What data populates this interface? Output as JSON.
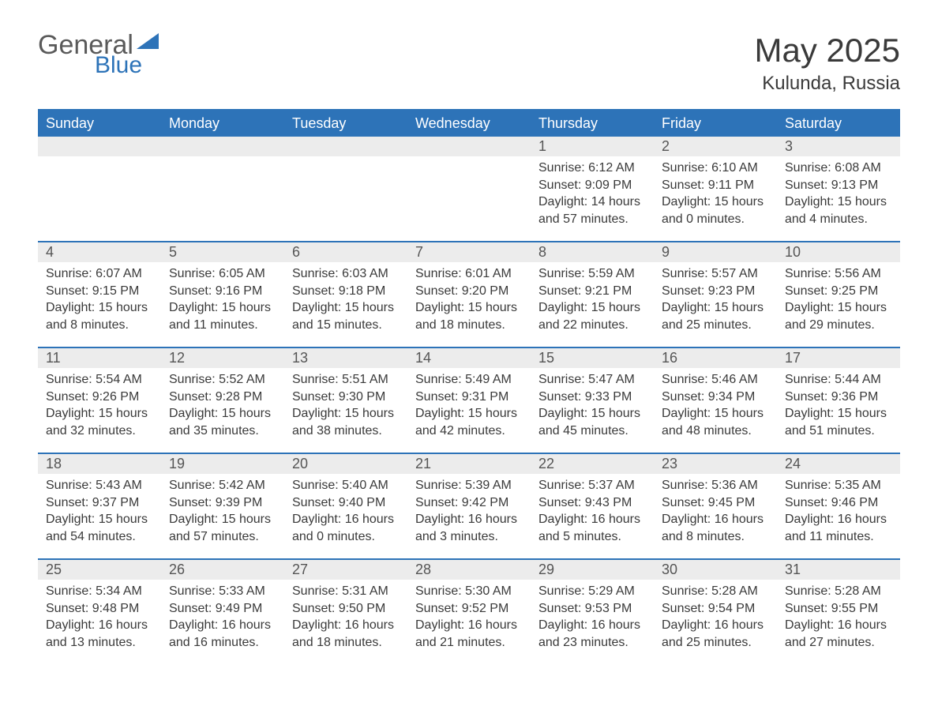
{
  "logo": {
    "word1": "General",
    "word2": "Blue"
  },
  "title": "May 2025",
  "location": "Kulunda, Russia",
  "colors": {
    "brand_blue": "#2d73b8",
    "header_bg": "#2d73b8",
    "header_text": "#ffffff",
    "daynum_bg": "#ececec",
    "text": "#3a3a3a",
    "page_bg": "#ffffff"
  },
  "weekdays": [
    "Sunday",
    "Monday",
    "Tuesday",
    "Wednesday",
    "Thursday",
    "Friday",
    "Saturday"
  ],
  "weeks": [
    [
      null,
      null,
      null,
      null,
      {
        "n": "1",
        "sr": "Sunrise: 6:12 AM",
        "ss": "Sunset: 9:09 PM",
        "d1": "Daylight: 14 hours",
        "d2": "and 57 minutes."
      },
      {
        "n": "2",
        "sr": "Sunrise: 6:10 AM",
        "ss": "Sunset: 9:11 PM",
        "d1": "Daylight: 15 hours",
        "d2": "and 0 minutes."
      },
      {
        "n": "3",
        "sr": "Sunrise: 6:08 AM",
        "ss": "Sunset: 9:13 PM",
        "d1": "Daylight: 15 hours",
        "d2": "and 4 minutes."
      }
    ],
    [
      {
        "n": "4",
        "sr": "Sunrise: 6:07 AM",
        "ss": "Sunset: 9:15 PM",
        "d1": "Daylight: 15 hours",
        "d2": "and 8 minutes."
      },
      {
        "n": "5",
        "sr": "Sunrise: 6:05 AM",
        "ss": "Sunset: 9:16 PM",
        "d1": "Daylight: 15 hours",
        "d2": "and 11 minutes."
      },
      {
        "n": "6",
        "sr": "Sunrise: 6:03 AM",
        "ss": "Sunset: 9:18 PM",
        "d1": "Daylight: 15 hours",
        "d2": "and 15 minutes."
      },
      {
        "n": "7",
        "sr": "Sunrise: 6:01 AM",
        "ss": "Sunset: 9:20 PM",
        "d1": "Daylight: 15 hours",
        "d2": "and 18 minutes."
      },
      {
        "n": "8",
        "sr": "Sunrise: 5:59 AM",
        "ss": "Sunset: 9:21 PM",
        "d1": "Daylight: 15 hours",
        "d2": "and 22 minutes."
      },
      {
        "n": "9",
        "sr": "Sunrise: 5:57 AM",
        "ss": "Sunset: 9:23 PM",
        "d1": "Daylight: 15 hours",
        "d2": "and 25 minutes."
      },
      {
        "n": "10",
        "sr": "Sunrise: 5:56 AM",
        "ss": "Sunset: 9:25 PM",
        "d1": "Daylight: 15 hours",
        "d2": "and 29 minutes."
      }
    ],
    [
      {
        "n": "11",
        "sr": "Sunrise: 5:54 AM",
        "ss": "Sunset: 9:26 PM",
        "d1": "Daylight: 15 hours",
        "d2": "and 32 minutes."
      },
      {
        "n": "12",
        "sr": "Sunrise: 5:52 AM",
        "ss": "Sunset: 9:28 PM",
        "d1": "Daylight: 15 hours",
        "d2": "and 35 minutes."
      },
      {
        "n": "13",
        "sr": "Sunrise: 5:51 AM",
        "ss": "Sunset: 9:30 PM",
        "d1": "Daylight: 15 hours",
        "d2": "and 38 minutes."
      },
      {
        "n": "14",
        "sr": "Sunrise: 5:49 AM",
        "ss": "Sunset: 9:31 PM",
        "d1": "Daylight: 15 hours",
        "d2": "and 42 minutes."
      },
      {
        "n": "15",
        "sr": "Sunrise: 5:47 AM",
        "ss": "Sunset: 9:33 PM",
        "d1": "Daylight: 15 hours",
        "d2": "and 45 minutes."
      },
      {
        "n": "16",
        "sr": "Sunrise: 5:46 AM",
        "ss": "Sunset: 9:34 PM",
        "d1": "Daylight: 15 hours",
        "d2": "and 48 minutes."
      },
      {
        "n": "17",
        "sr": "Sunrise: 5:44 AM",
        "ss": "Sunset: 9:36 PM",
        "d1": "Daylight: 15 hours",
        "d2": "and 51 minutes."
      }
    ],
    [
      {
        "n": "18",
        "sr": "Sunrise: 5:43 AM",
        "ss": "Sunset: 9:37 PM",
        "d1": "Daylight: 15 hours",
        "d2": "and 54 minutes."
      },
      {
        "n": "19",
        "sr": "Sunrise: 5:42 AM",
        "ss": "Sunset: 9:39 PM",
        "d1": "Daylight: 15 hours",
        "d2": "and 57 minutes."
      },
      {
        "n": "20",
        "sr": "Sunrise: 5:40 AM",
        "ss": "Sunset: 9:40 PM",
        "d1": "Daylight: 16 hours",
        "d2": "and 0 minutes."
      },
      {
        "n": "21",
        "sr": "Sunrise: 5:39 AM",
        "ss": "Sunset: 9:42 PM",
        "d1": "Daylight: 16 hours",
        "d2": "and 3 minutes."
      },
      {
        "n": "22",
        "sr": "Sunrise: 5:37 AM",
        "ss": "Sunset: 9:43 PM",
        "d1": "Daylight: 16 hours",
        "d2": "and 5 minutes."
      },
      {
        "n": "23",
        "sr": "Sunrise: 5:36 AM",
        "ss": "Sunset: 9:45 PM",
        "d1": "Daylight: 16 hours",
        "d2": "and 8 minutes."
      },
      {
        "n": "24",
        "sr": "Sunrise: 5:35 AM",
        "ss": "Sunset: 9:46 PM",
        "d1": "Daylight: 16 hours",
        "d2": "and 11 minutes."
      }
    ],
    [
      {
        "n": "25",
        "sr": "Sunrise: 5:34 AM",
        "ss": "Sunset: 9:48 PM",
        "d1": "Daylight: 16 hours",
        "d2": "and 13 minutes."
      },
      {
        "n": "26",
        "sr": "Sunrise: 5:33 AM",
        "ss": "Sunset: 9:49 PM",
        "d1": "Daylight: 16 hours",
        "d2": "and 16 minutes."
      },
      {
        "n": "27",
        "sr": "Sunrise: 5:31 AM",
        "ss": "Sunset: 9:50 PM",
        "d1": "Daylight: 16 hours",
        "d2": "and 18 minutes."
      },
      {
        "n": "28",
        "sr": "Sunrise: 5:30 AM",
        "ss": "Sunset: 9:52 PM",
        "d1": "Daylight: 16 hours",
        "d2": "and 21 minutes."
      },
      {
        "n": "29",
        "sr": "Sunrise: 5:29 AM",
        "ss": "Sunset: 9:53 PM",
        "d1": "Daylight: 16 hours",
        "d2": "and 23 minutes."
      },
      {
        "n": "30",
        "sr": "Sunrise: 5:28 AM",
        "ss": "Sunset: 9:54 PM",
        "d1": "Daylight: 16 hours",
        "d2": "and 25 minutes."
      },
      {
        "n": "31",
        "sr": "Sunrise: 5:28 AM",
        "ss": "Sunset: 9:55 PM",
        "d1": "Daylight: 16 hours",
        "d2": "and 27 minutes."
      }
    ]
  ]
}
